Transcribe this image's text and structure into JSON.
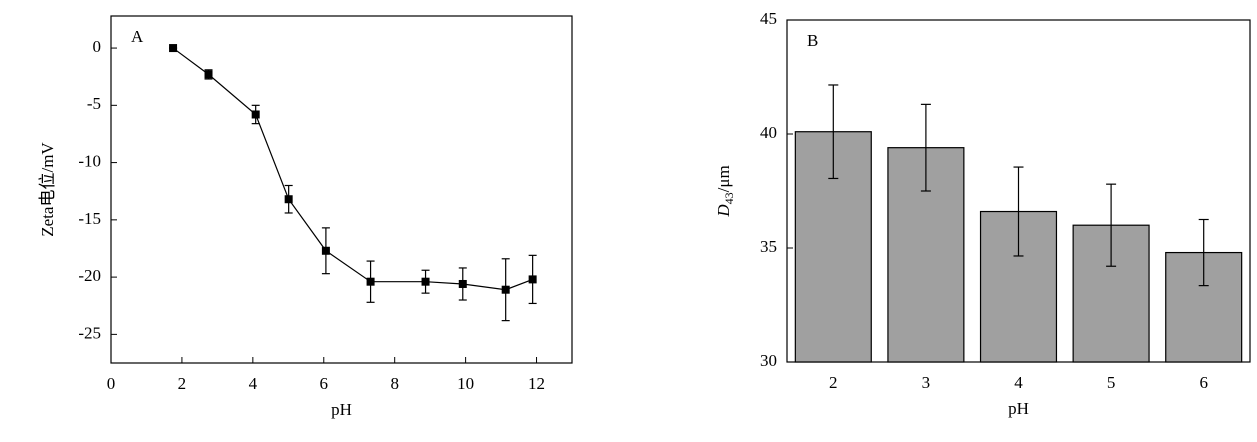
{
  "chart_data": [
    {
      "type": "line",
      "annotation": "A",
      "x_label": "pH",
      "y_label": "Zeta电位/mV",
      "x": [
        1.75,
        2.75,
        4.08,
        5.01,
        6.06,
        7.32,
        8.87,
        9.92,
        11.13,
        11.89
      ],
      "values": [
        0,
        -2.3,
        -5.8,
        -13.2,
        -17.7,
        -20.4,
        -20.4,
        -20.6,
        -21.1,
        -20.2
      ],
      "errors": [
        0,
        0.4,
        0.8,
        1.2,
        2,
        1.8,
        1.0,
        1.4,
        2.7,
        2.1
      ],
      "color": "#000000",
      "xlim": [
        0,
        13
      ],
      "xticks": [
        0,
        2,
        4,
        6,
        8,
        10,
        12
      ],
      "ylim": [
        -27.5,
        2.8
      ],
      "yticks": [
        0,
        -5,
        -10,
        -15,
        -20,
        -25
      ]
    },
    {
      "type": "bar",
      "annotation": "B",
      "x_label": "pH",
      "y_label": {
        "main": "D",
        "sub": "43",
        "unit": "/μm"
      },
      "categories": [
        "2",
        "3",
        "4",
        "5",
        "6"
      ],
      "values": [
        40.1,
        39.4,
        36.6,
        36.0,
        34.8
      ],
      "errors": [
        2.05,
        1.9,
        1.95,
        1.8,
        1.45
      ],
      "color": "#a0a0a0",
      "ylim": [
        30,
        45
      ],
      "yticks": [
        30,
        35,
        40,
        45
      ]
    }
  ]
}
